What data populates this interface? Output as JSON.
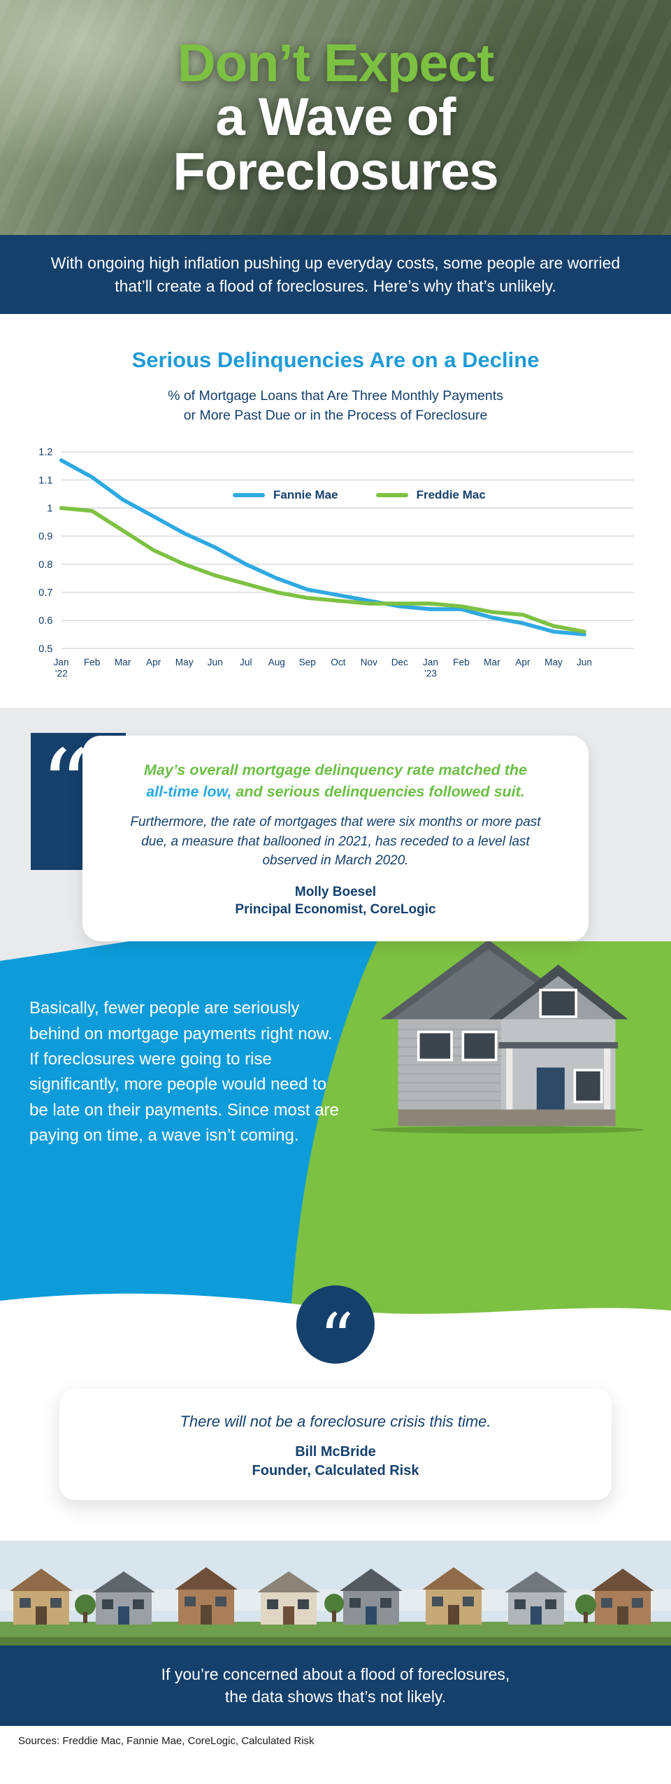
{
  "hero": {
    "title_line1": "Don’t Expect",
    "title_line2": "a Wave of",
    "title_line3": "Foreclosures",
    "subtitle": "With ongoing high inflation pushing up everyday costs, some people are worried that’ll create a flood of foreclosures. Here’s why that’s unlikely."
  },
  "chart_section": {
    "heading": "Serious Delinquencies Are on a Decline",
    "subheading_line1": "% of Mortgage Loans that Are Three Monthly Payments",
    "subheading_line2": "or More Past Due or in the Process of Foreclosure"
  },
  "chart_data": {
    "type": "line",
    "title": "Serious Delinquencies Are on a Decline",
    "subtitle": "% of Mortgage Loans that Are Three Monthly Payments or More Past Due or in the Process of Foreclosure",
    "x": [
      "Jan ’22",
      "Feb",
      "Mar",
      "Apr",
      "May",
      "Jun",
      "Jul",
      "Aug",
      "Sep",
      "Oct",
      "Nov",
      "Dec",
      "Jan ’23",
      "Feb",
      "Mar",
      "Apr",
      "May",
      "Jun"
    ],
    "ylim": [
      0.5,
      1.2
    ],
    "yticks": [
      0.5,
      0.6,
      0.7,
      0.8,
      0.9,
      1,
      1.1,
      1.2
    ],
    "grid": true,
    "legend_position": "inside-top-right",
    "series": [
      {
        "name": "Fannie Mae",
        "color": "#2FA9E1",
        "values": [
          1.17,
          1.11,
          1.03,
          0.97,
          0.91,
          0.86,
          0.8,
          0.75,
          0.71,
          0.69,
          0.67,
          0.65,
          0.64,
          0.64,
          0.61,
          0.59,
          0.56,
          0.55
        ]
      },
      {
        "name": "Freddie Mac",
        "color": "#7DC142",
        "values": [
          1.0,
          0.99,
          0.92,
          0.85,
          0.8,
          0.76,
          0.73,
          0.7,
          0.68,
          0.67,
          0.66,
          0.66,
          0.66,
          0.65,
          0.63,
          0.62,
          0.58,
          0.56
        ]
      }
    ]
  },
  "quote1": {
    "glyph": "“",
    "highlight_before": "May’s overall mortgage delinquency rate matched the ",
    "highlight_emphasis": "all-time low,",
    "highlight_after": " and serious delinquencies followed suit.",
    "body": "Furthermore, the rate of mortgages that were six months or more past due, a measure that ballooned in 2021, has receded to a level last observed in March 2020.",
    "author": "Molly Boesel",
    "author_title": "Principal Economist, CoreLogic"
  },
  "blue_section": {
    "text": "Basically, fewer people are seriously behind on mortgage payments right now. If foreclosures were going to rise significantly, more people would need to be late on their payments. Since most are paying on time, a wave isn’t coming."
  },
  "quote2": {
    "glyph": "“",
    "text": "There will not be a foreclosure crisis this time.",
    "author": "Bill McBride",
    "author_title": "Founder, Calculated Risk"
  },
  "closing_band": {
    "text_line1": "If you’re concerned about a flood of foreclosures,",
    "text_line2": "the data shows that’s not likely."
  },
  "sources": "Sources: Freddie Mac, Fannie Mae, CoreLogic, Calculated Risk",
  "colors": {
    "navy": "#15406C",
    "bright_blue": "#0D9CD9",
    "heading_blue": "#1F9BD7",
    "green": "#7DC142",
    "light_gray": "#E9EAEC",
    "fannie_mae_line": "#2FA9E1",
    "freddie_mac_line": "#7DC142"
  }
}
